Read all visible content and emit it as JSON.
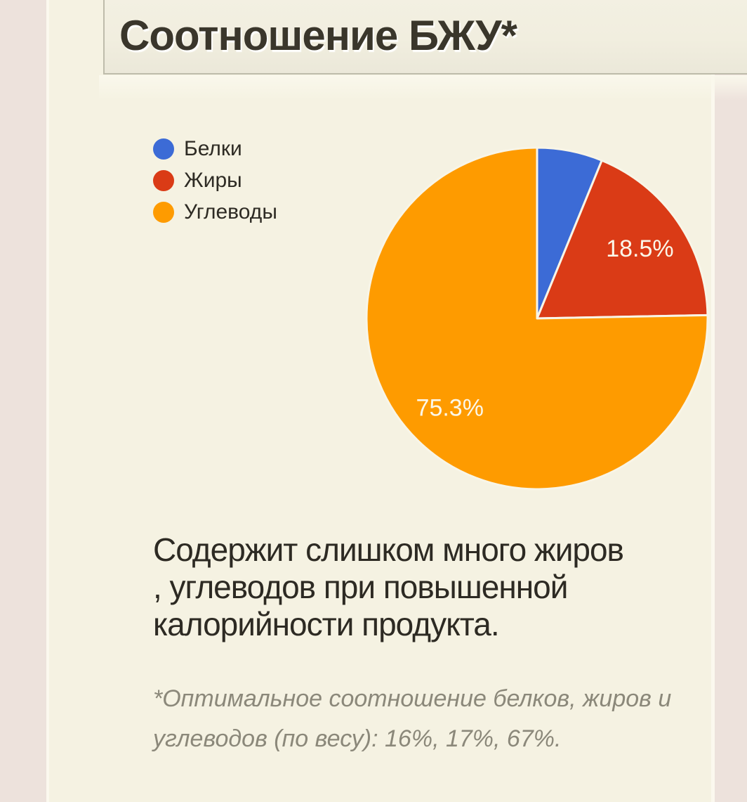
{
  "header": {
    "title": "Соотношение БЖУ*"
  },
  "chart_data": {
    "type": "pie",
    "title": "Соотношение БЖУ*",
    "categories": [
      "Белки",
      "Жиры",
      "Углеводы"
    ],
    "values": [
      6.2,
      18.5,
      75.3
    ],
    "slice_labels": [
      "",
      "18.5%",
      "75.3%"
    ],
    "colors": [
      "#3C6BD6",
      "#DA3B16",
      "#FE9B00"
    ],
    "legend_position": "left-top",
    "start_angle_deg": 0,
    "direction": "clockwise",
    "slice_border_color": "#F8F5E7",
    "slice_label_color": "#FBF7E9"
  },
  "description": {
    "text": "Содержит слишком много жиров\n, углеводов при повышенной\nкалорийности продукта."
  },
  "footnote": {
    "text": "*Оптимальное соотношение белков, жиров и\nуглеводов (по весу): 16%, 17%, 67%."
  },
  "theme": {
    "outer_background": "#EDE2DC",
    "panel_background": "#F5F2E2",
    "header_border": "#BEBCAB",
    "title_color": "#3A362B",
    "text_color": "#2D2A23",
    "footnote_color": "#8B887A"
  }
}
